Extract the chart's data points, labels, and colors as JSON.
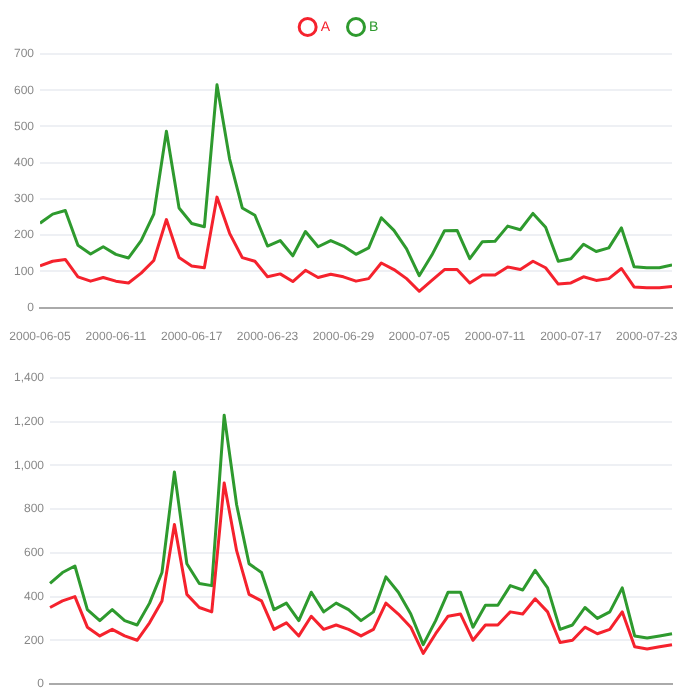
{
  "chart_data": [
    {
      "type": "line",
      "x": [
        "2000-06-05",
        "2000-06-06",
        "2000-06-07",
        "2000-06-08",
        "2000-06-09",
        "2000-06-10",
        "2000-06-11",
        "2000-06-12",
        "2000-06-13",
        "2000-06-14",
        "2000-06-15",
        "2000-06-16",
        "2000-06-17",
        "2000-06-18",
        "2000-06-19",
        "2000-06-20",
        "2000-06-21",
        "2000-06-22",
        "2000-06-23",
        "2000-06-24",
        "2000-06-25",
        "2000-06-26",
        "2000-06-27",
        "2000-06-28",
        "2000-06-29",
        "2000-06-30",
        "2000-07-01",
        "2000-07-02",
        "2000-07-03",
        "2000-07-04",
        "2000-07-05",
        "2000-07-06",
        "2000-07-07",
        "2000-07-08",
        "2000-07-09",
        "2000-07-10",
        "2000-07-11",
        "2000-07-12",
        "2000-07-13",
        "2000-07-14",
        "2000-07-15",
        "2000-07-16",
        "2000-07-17",
        "2000-07-18",
        "2000-07-19",
        "2000-07-20",
        "2000-07-21",
        "2000-07-22",
        "2000-07-23",
        "2000-07-24",
        "2000-07-25"
      ],
      "series": [
        {
          "name": "A",
          "color": "#f5222d",
          "values": [
            115,
            128,
            133,
            85,
            73,
            83,
            73,
            68,
            95,
            130,
            243,
            138,
            115,
            110,
            305,
            205,
            138,
            128,
            85,
            93,
            72,
            103,
            83,
            92,
            85,
            73,
            80,
            123,
            105,
            80,
            45,
            75,
            105,
            105,
            68,
            90,
            90,
            112,
            105,
            128,
            110,
            65,
            68,
            85,
            75,
            80,
            108,
            57,
            55,
            55,
            58
          ]
        },
        {
          "name": "B",
          "color": "#2e9a2e",
          "values": [
            233,
            258,
            268,
            172,
            148,
            168,
            147,
            137,
            185,
            258,
            487,
            275,
            232,
            223,
            615,
            410,
            275,
            255,
            170,
            185,
            143,
            210,
            168,
            185,
            170,
            147,
            165,
            248,
            213,
            162,
            88,
            145,
            212,
            213,
            135,
            182,
            183,
            225,
            215,
            260,
            222,
            128,
            135,
            175,
            155,
            165,
            220,
            113,
            110,
            110,
            118
          ]
        }
      ],
      "xlim": [
        "2000-06-05",
        "2000-07-25"
      ],
      "xticks": [
        "2000-06-05",
        "2000-06-11",
        "2000-06-17",
        "2000-06-23",
        "2000-06-29",
        "2000-07-05",
        "2000-07-11",
        "2000-07-17",
        "2000-07-23"
      ],
      "ylim": [
        0,
        700
      ],
      "yticks": [
        0,
        100,
        200,
        300,
        400,
        500,
        600,
        700
      ],
      "grid": "y",
      "legend": "top",
      "marker": "none",
      "line_style": "solid"
    },
    {
      "type": "line",
      "categories": [
        null,
        null,
        null,
        null,
        null,
        null,
        null,
        null,
        null,
        null,
        null,
        null,
        null,
        null,
        null,
        null,
        null,
        null,
        null,
        null,
        null,
        null,
        null,
        null,
        null,
        null,
        null,
        null,
        null,
        null,
        null,
        null,
        null,
        null,
        null,
        null,
        null,
        null,
        null,
        null,
        null,
        null,
        null,
        null,
        null,
        null,
        null,
        null,
        null,
        null,
        null
      ],
      "series": [
        {
          "color": "#f5222d",
          "values": [
            350,
            380,
            400,
            260,
            220,
            250,
            220,
            200,
            280,
            380,
            730,
            410,
            350,
            330,
            920,
            610,
            410,
            380,
            250,
            280,
            220,
            310,
            250,
            270,
            250,
            220,
            250,
            370,
            320,
            260,
            140,
            230,
            310,
            320,
            200,
            270,
            270,
            330,
            320,
            390,
            330,
            190,
            200,
            260,
            230,
            250,
            330,
            170,
            160,
            170,
            180
          ]
        },
        {
          "color": "#2e9a2e",
          "values": [
            460,
            510,
            540,
            340,
            290,
            340,
            290,
            270,
            370,
            510,
            970,
            550,
            460,
            450,
            1230,
            820,
            550,
            510,
            340,
            370,
            290,
            420,
            330,
            370,
            340,
            290,
            330,
            490,
            420,
            320,
            180,
            290,
            420,
            420,
            260,
            360,
            360,
            450,
            430,
            520,
            440,
            250,
            270,
            350,
            300,
            330,
            440,
            220,
            210,
            220,
            230
          ]
        }
      ],
      "ylim": [
        0,
        1400
      ],
      "yticks": [
        0,
        {
          "value": 200,
          "label": "200"
        },
        {
          "value": 400,
          "label": "400"
        },
        {
          "value": 600,
          "label": "600"
        },
        {
          "value": 800,
          "label": "800"
        },
        {
          "value": 1000,
          "label": "1,000"
        },
        {
          "value": 1200,
          "label": "1,200"
        },
        {
          "value": 1400,
          "label": "1,400"
        }
      ],
      "grid": "y",
      "tick_labels": "y",
      "marker": "none",
      "line_style": "solid"
    }
  ]
}
